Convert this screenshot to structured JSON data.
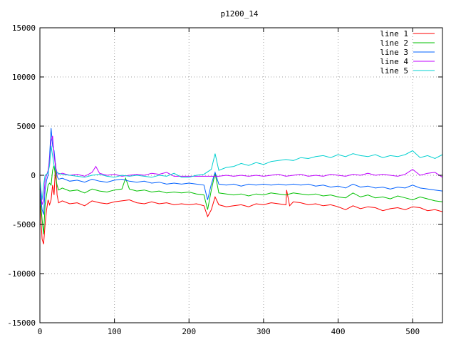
{
  "chart_data": {
    "type": "line",
    "title": "p1200_14",
    "xlabel": "",
    "ylabel": "",
    "xlim": [
      0,
      540
    ],
    "ylim": [
      -15000,
      15000
    ],
    "xticks": [
      0,
      100,
      200,
      300,
      400,
      500
    ],
    "yticks": [
      -15000,
      -10000,
      -5000,
      0,
      5000,
      10000,
      15000
    ],
    "grid": true,
    "legend_position": "top-right",
    "series": [
      {
        "name": "line 1",
        "color": "#ff0000",
        "x": [
          0,
          3,
          5,
          7,
          9,
          11,
          13,
          15,
          17,
          19,
          21,
          23,
          25,
          30,
          40,
          50,
          60,
          70,
          80,
          90,
          100,
          110,
          120,
          130,
          140,
          150,
          160,
          170,
          180,
          190,
          200,
          210,
          220,
          225,
          230,
          235,
          240,
          250,
          260,
          270,
          280,
          290,
          300,
          310,
          320,
          330,
          331,
          335,
          340,
          350,
          360,
          370,
          380,
          390,
          400,
          410,
          420,
          430,
          440,
          450,
          460,
          470,
          480,
          490,
          500,
          510,
          520,
          530,
          540
        ],
        "y": [
          -2500,
          -6500,
          -7000,
          -5000,
          -3500,
          -2500,
          -3000,
          -2500,
          -1000,
          -2000,
          1200,
          -2000,
          -2800,
          -2600,
          -2900,
          -2800,
          -3100,
          -2600,
          -2800,
          -2900,
          -2700,
          -2600,
          -2500,
          -2800,
          -2900,
          -2700,
          -2900,
          -2800,
          -3000,
          -2900,
          -3000,
          -2900,
          -3100,
          -4200,
          -3500,
          -2200,
          -3000,
          -3200,
          -3100,
          -3000,
          -3200,
          -2900,
          -3000,
          -2800,
          -2900,
          -3000,
          -1500,
          -3100,
          -2700,
          -2800,
          -3000,
          -2900,
          -3100,
          -3000,
          -3200,
          -3500,
          -3100,
          -3400,
          -3200,
          -3300,
          -3600,
          -3400,
          -3300,
          -3500,
          -3200,
          -3300,
          -3600,
          -3500,
          -3700
        ]
      },
      {
        "name": "line 2",
        "color": "#00c000",
        "x": [
          0,
          3,
          5,
          7,
          9,
          11,
          13,
          15,
          17,
          19,
          21,
          23,
          25,
          30,
          40,
          50,
          60,
          70,
          80,
          90,
          100,
          110,
          115,
          120,
          130,
          140,
          150,
          160,
          170,
          180,
          190,
          200,
          210,
          220,
          225,
          230,
          235,
          240,
          250,
          260,
          270,
          280,
          290,
          300,
          310,
          320,
          330,
          340,
          350,
          360,
          370,
          380,
          390,
          400,
          410,
          420,
          430,
          440,
          450,
          460,
          470,
          480,
          490,
          500,
          510,
          520,
          530,
          540
        ],
        "y": [
          -2000,
          -4500,
          -6000,
          -3000,
          -2000,
          -1000,
          -800,
          -1000,
          500,
          1000,
          -200,
          -1000,
          -1500,
          -1300,
          -1600,
          -1500,
          -1800,
          -1400,
          -1600,
          -1700,
          -1500,
          -1400,
          -300,
          -1400,
          -1600,
          -1500,
          -1700,
          -1600,
          -1800,
          -1700,
          -1800,
          -1700,
          -1900,
          -2000,
          -3500,
          -1500,
          200,
          -1800,
          -1900,
          -2000,
          -1900,
          -2100,
          -1900,
          -2000,
          -1800,
          -1900,
          -2000,
          -1800,
          -1900,
          -2000,
          -1900,
          -2100,
          -2000,
          -2200,
          -2300,
          -1800,
          -2200,
          -2000,
          -2300,
          -2200,
          -2400,
          -2100,
          -2300,
          -2500,
          -2200,
          -2400,
          -2600,
          -2700
        ]
      },
      {
        "name": "line 3",
        "color": "#0060ff",
        "x": [
          0,
          3,
          5,
          7,
          9,
          11,
          13,
          15,
          17,
          19,
          21,
          23,
          25,
          30,
          40,
          50,
          60,
          70,
          80,
          90,
          100,
          110,
          120,
          130,
          140,
          150,
          160,
          170,
          180,
          190,
          200,
          210,
          220,
          225,
          230,
          235,
          240,
          250,
          260,
          270,
          280,
          290,
          300,
          310,
          320,
          330,
          340,
          350,
          360,
          370,
          380,
          390,
          400,
          410,
          420,
          430,
          440,
          450,
          460,
          470,
          480,
          490,
          500,
          510,
          520,
          530,
          540
        ],
        "y": [
          -1500,
          -3500,
          -4000,
          -1500,
          -500,
          0,
          2000,
          4800,
          3000,
          2500,
          1000,
          -100,
          -400,
          -300,
          -600,
          -500,
          -700,
          -400,
          -600,
          -700,
          -500,
          -400,
          -600,
          -700,
          -600,
          -800,
          -700,
          -900,
          -800,
          -900,
          -800,
          -900,
          -1000,
          -2500,
          -900,
          300,
          -900,
          -1000,
          -900,
          -1100,
          -900,
          -1000,
          -900,
          -1000,
          -900,
          -1000,
          -900,
          -1000,
          -900,
          -1100,
          -1000,
          -1200,
          -1100,
          -1300,
          -900,
          -1200,
          -1100,
          -1300,
          -1200,
          -1400,
          -1200,
          -1300,
          -1000,
          -1300,
          -1400,
          -1500,
          -1600
        ]
      },
      {
        "name": "line 4",
        "color": "#c000ff",
        "x": [
          0,
          3,
          5,
          7,
          9,
          11,
          13,
          15,
          17,
          19,
          21,
          23,
          25,
          30,
          40,
          50,
          60,
          70,
          75,
          80,
          90,
          100,
          110,
          120,
          130,
          140,
          150,
          160,
          170,
          180,
          190,
          200,
          210,
          220,
          230,
          240,
          250,
          260,
          270,
          280,
          290,
          300,
          310,
          320,
          330,
          340,
          350,
          360,
          370,
          380,
          390,
          400,
          410,
          420,
          430,
          440,
          450,
          460,
          470,
          480,
          490,
          500,
          510,
          520,
          530,
          540
        ],
        "y": [
          -1000,
          -3000,
          -2500,
          -500,
          0,
          500,
          1500,
          3500,
          4000,
          2000,
          800,
          300,
          100,
          200,
          0,
          100,
          -100,
          300,
          900,
          200,
          0,
          100,
          -100,
          0,
          100,
          0,
          200,
          100,
          300,
          -100,
          -100,
          -100,
          -100,
          -100,
          -100,
          -100,
          0,
          -100,
          0,
          -100,
          0,
          -100,
          0,
          100,
          -100,
          0,
          100,
          -100,
          0,
          -100,
          100,
          0,
          -100,
          100,
          0,
          200,
          0,
          100,
          0,
          -100,
          100,
          600,
          0,
          200,
          300,
          -200
        ]
      },
      {
        "name": "line 5",
        "color": "#00d0d0",
        "x": [
          0,
          3,
          5,
          7,
          9,
          11,
          13,
          15,
          17,
          19,
          21,
          23,
          25,
          30,
          40,
          50,
          60,
          70,
          80,
          90,
          100,
          110,
          120,
          130,
          140,
          150,
          160,
          170,
          180,
          190,
          200,
          210,
          220,
          230,
          235,
          240,
          250,
          260,
          270,
          280,
          290,
          300,
          310,
          320,
          330,
          340,
          350,
          360,
          370,
          380,
          390,
          400,
          410,
          420,
          430,
          440,
          450,
          460,
          470,
          480,
          490,
          500,
          510,
          520,
          530,
          540
        ],
        "y": [
          -500,
          -2500,
          -1000,
          0,
          100,
          300,
          1000,
          3000,
          2000,
          1000,
          500,
          300,
          200,
          100,
          0,
          -100,
          -200,
          0,
          100,
          -100,
          -200,
          0,
          -100,
          0,
          -100,
          -200,
          0,
          -100,
          200,
          -200,
          -200,
          0,
          100,
          600,
          2200,
          500,
          800,
          900,
          1200,
          1000,
          1300,
          1100,
          1400,
          1500,
          1600,
          1500,
          1800,
          1700,
          1900,
          2000,
          1800,
          2100,
          1900,
          2200,
          2000,
          1900,
          2100,
          1800,
          2000,
          1900,
          2100,
          2500,
          1800,
          2000,
          1700,
          2100
        ]
      }
    ]
  }
}
